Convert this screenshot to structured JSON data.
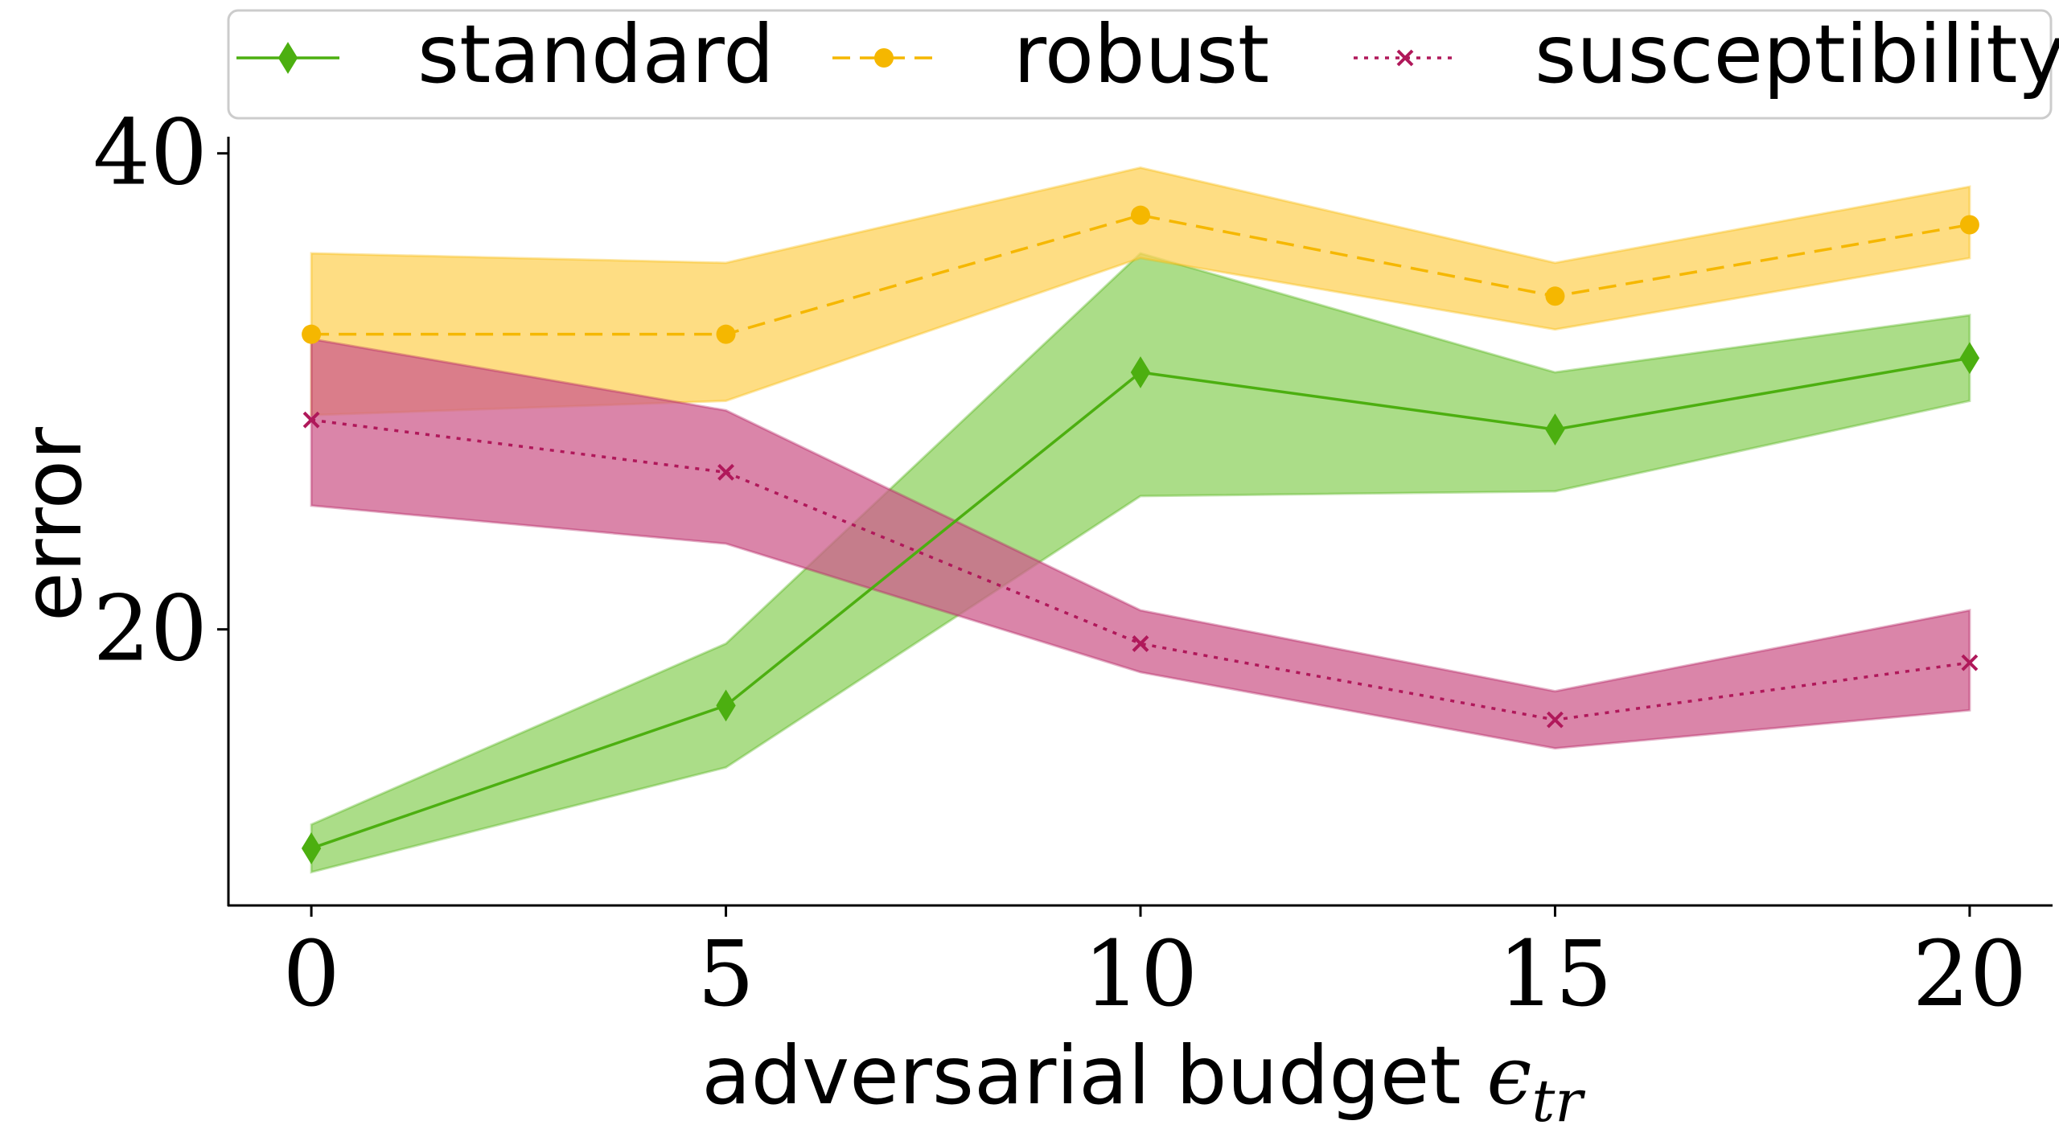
{
  "chart_data": {
    "type": "line",
    "xlabel": "adversarial budget ",
    "xlabel_math": "ϵ",
    "xlabel_math_sub": "tr",
    "ylabel": "error",
    "x": [
      0,
      5,
      10,
      15,
      20
    ],
    "xticks": [
      "0",
      "5",
      "10",
      "15",
      "20"
    ],
    "yticks": [
      "20",
      "40"
    ],
    "xlim": [
      -1,
      21
    ],
    "ylim": [
      8.4,
      40.7
    ],
    "legend_position": "top, outside plot area",
    "grid": false,
    "series": [
      {
        "name": "standard",
        "values": [
          10.8,
          16.8,
          30.8,
          28.4,
          31.4
        ],
        "lower": [
          9.8,
          14.2,
          25.6,
          25.8,
          29.6
        ],
        "upper": [
          11.8,
          19.4,
          35.8,
          30.8,
          33.2
        ],
        "color": "#4caf10",
        "band_color": "#8fd160",
        "line_style": "solid",
        "marker": "diamond"
      },
      {
        "name": "robust",
        "values": [
          32.4,
          32.4,
          37.4,
          34.0,
          37.0
        ],
        "lower": [
          29.0,
          29.6,
          35.6,
          32.6,
          35.6
        ],
        "upper": [
          35.8,
          35.4,
          39.4,
          35.4,
          38.6
        ],
        "color": "#f5b700",
        "band_color": "#fdd25a",
        "line_style": "dashed",
        "marker": "circle"
      },
      {
        "name": "susceptibility",
        "values": [
          28.8,
          26.6,
          19.4,
          16.2,
          18.6
        ],
        "lower": [
          25.2,
          23.6,
          18.2,
          15.0,
          16.6
        ],
        "upper": [
          32.2,
          29.2,
          20.8,
          17.4,
          20.8
        ],
        "color": "#b0185a",
        "band_color": "#cd5c8c",
        "line_style": "dotted",
        "marker": "x"
      }
    ]
  }
}
